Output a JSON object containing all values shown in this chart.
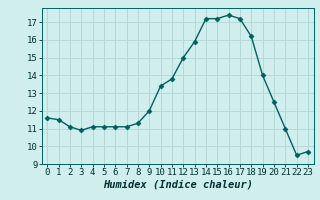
{
  "x": [
    0,
    1,
    2,
    3,
    4,
    5,
    6,
    7,
    8,
    9,
    10,
    11,
    12,
    13,
    14,
    15,
    16,
    17,
    18,
    19,
    20,
    21,
    22,
    23
  ],
  "y": [
    11.6,
    11.5,
    11.1,
    10.9,
    11.1,
    11.1,
    11.1,
    11.1,
    11.3,
    12.0,
    13.4,
    13.8,
    15.0,
    15.9,
    17.2,
    17.2,
    17.4,
    17.2,
    16.2,
    14.0,
    12.5,
    11.0,
    9.5,
    9.7
  ],
  "line_color": "#006060",
  "marker": "D",
  "marker_size": 2.5,
  "background_color": "#d0eeee",
  "grid_color": "#b8d8d8",
  "xlabel": "Humidex (Indice chaleur)",
  "xlim": [
    -0.5,
    23.5
  ],
  "ylim": [
    9,
    17.8
  ],
  "yticks": [
    9,
    10,
    11,
    12,
    13,
    14,
    15,
    16,
    17
  ],
  "xticks": [
    0,
    1,
    2,
    3,
    4,
    5,
    6,
    7,
    8,
    9,
    10,
    11,
    12,
    13,
    14,
    15,
    16,
    17,
    18,
    19,
    20,
    21,
    22,
    23
  ],
  "tick_fontsize": 6.5,
  "xlabel_fontsize": 7.5
}
